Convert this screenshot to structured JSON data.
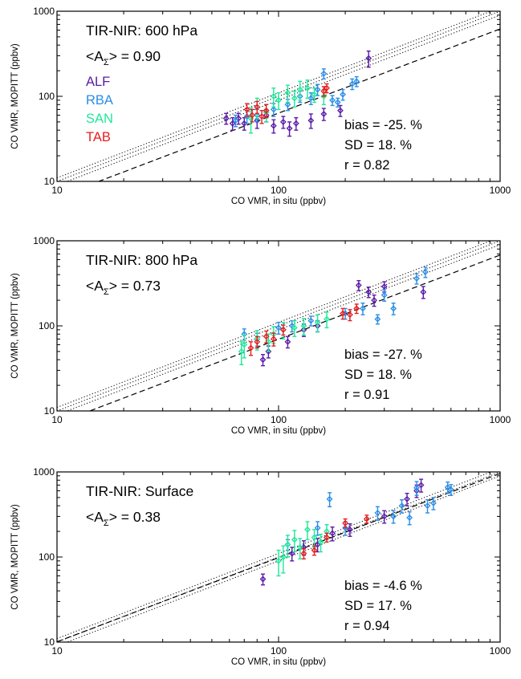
{
  "chart_data": [
    {
      "type": "scatter",
      "title": "TIR-NIR: 600 hPa",
      "avg_ak_label": "<A",
      "avg_ak_sub": "Σ",
      "avg_ak_value": "> = 0.90",
      "xlabel": "CO VMR, in situ (ppbv)",
      "ylabel": "CO VMR, MOPITT (ppbv)",
      "xscale": "log",
      "yscale": "log",
      "xlim": [
        10,
        1000
      ],
      "ylim": [
        10,
        1000
      ],
      "xticks": [
        {
          "v": 10,
          "label": "10"
        },
        {
          "v": 100,
          "label": "100"
        },
        {
          "v": 1000,
          "label": "1000"
        }
      ],
      "yticks": [
        {
          "v": 10,
          "label": "10"
        },
        {
          "v": 100,
          "label": "100"
        },
        {
          "v": 1000,
          "label": "1000"
        }
      ],
      "legend": [
        "ALF",
        "RBA",
        "SAN",
        "TAB"
      ],
      "stats": [
        "bias = -25. %",
        "SD = 18. %",
        "r = 0.82"
      ],
      "fit_factor": 0.62,
      "series": [
        {
          "name": "ALF",
          "color": "#5a1aa8",
          "points": [
            [
              58,
              55,
              8
            ],
            [
              62,
              48,
              8
            ],
            [
              66,
              55,
              8
            ],
            [
              70,
              48,
              8
            ],
            [
              80,
              52,
              10
            ],
            [
              88,
              60,
              10
            ],
            [
              95,
              45,
              8
            ],
            [
              105,
              50,
              8
            ],
            [
              112,
              42,
              8
            ],
            [
              120,
              48,
              8
            ],
            [
              140,
              52,
              10
            ],
            [
              160,
              62,
              10
            ],
            [
              190,
              68,
              10
            ],
            [
              255,
              280,
              60
            ]
          ]
        },
        {
          "name": "RBA",
          "color": "#2a8ee6",
          "points": [
            [
              64,
              52,
              8
            ],
            [
              72,
              58,
              10
            ],
            [
              80,
              60,
              10
            ],
            [
              95,
              70,
              12
            ],
            [
              110,
              80,
              12
            ],
            [
              125,
              100,
              15
            ],
            [
              140,
              95,
              15
            ],
            [
              150,
              120,
              18
            ],
            [
              160,
              185,
              25
            ],
            [
              175,
              90,
              12
            ],
            [
              185,
              85,
              10
            ],
            [
              195,
              105,
              15
            ],
            [
              215,
              140,
              20
            ],
            [
              225,
              150,
              20
            ]
          ]
        },
        {
          "name": "SAN",
          "color": "#1fe89a",
          "points": [
            [
              75,
              55,
              18
            ],
            [
              80,
              75,
              20
            ],
            [
              88,
              65,
              15
            ],
            [
              95,
              100,
              25
            ],
            [
              100,
              90,
              20
            ],
            [
              110,
              110,
              25
            ],
            [
              118,
              95,
              20
            ],
            [
              125,
              120,
              30
            ],
            [
              135,
              125,
              30
            ],
            [
              145,
              105,
              20
            ],
            [
              160,
              100,
              20
            ]
          ]
        },
        {
          "name": "TAB",
          "color": "#e61e1e",
          "points": [
            [
              72,
              70,
              12
            ],
            [
              76,
              60,
              10
            ],
            [
              80,
              75,
              12
            ],
            [
              84,
              58,
              10
            ],
            [
              88,
              68,
              12
            ],
            [
              160,
              115,
              15
            ],
            [
              165,
              125,
              15
            ]
          ]
        }
      ]
    },
    {
      "type": "scatter",
      "title": "TIR-NIR: 800 hPa",
      "avg_ak_label": "<A",
      "avg_ak_sub": "Σ",
      "avg_ak_value": "> = 0.73",
      "xlabel": "CO VMR, in situ (ppbv)",
      "ylabel": "CO VMR, MOPITT (ppbv)",
      "xscale": "log",
      "yscale": "log",
      "xlim": [
        10,
        1000
      ],
      "ylim": [
        10,
        1000
      ],
      "xticks": [
        {
          "v": 10,
          "label": "10"
        },
        {
          "v": 100,
          "label": "100"
        },
        {
          "v": 1000,
          "label": "1000"
        }
      ],
      "yticks": [
        {
          "v": 10,
          "label": "10"
        },
        {
          "v": 100,
          "label": "100"
        },
        {
          "v": 1000,
          "label": "1000"
        }
      ],
      "stats": [
        "bias = -27. %",
        "SD = 18. %",
        "r = 0.91"
      ],
      "fit_factor": 0.68,
      "series": [
        {
          "name": "ALF",
          "color": "#5a1aa8",
          "points": [
            [
              85,
              40,
              6
            ],
            [
              90,
              50,
              8
            ],
            [
              110,
              65,
              10
            ],
            [
              130,
              90,
              15
            ],
            [
              150,
              100,
              15
            ],
            [
              230,
              300,
              40
            ],
            [
              255,
              250,
              35
            ],
            [
              270,
              200,
              30
            ],
            [
              300,
              290,
              40
            ],
            [
              450,
              250,
              40
            ]
          ]
        },
        {
          "name": "RBA",
          "color": "#2a8ee6",
          "points": [
            [
              70,
              80,
              12
            ],
            [
              80,
              70,
              12
            ],
            [
              100,
              95,
              15
            ],
            [
              115,
              100,
              15
            ],
            [
              140,
              115,
              15
            ],
            [
              200,
              140,
              20
            ],
            [
              240,
              160,
              25
            ],
            [
              280,
              120,
              15
            ],
            [
              300,
              230,
              35
            ],
            [
              330,
              160,
              25
            ],
            [
              420,
              360,
              50
            ],
            [
              460,
              430,
              60
            ]
          ]
        },
        {
          "name": "SAN",
          "color": "#1fe89a",
          "points": [
            [
              68,
              50,
              15
            ],
            [
              70,
              60,
              18
            ],
            [
              80,
              70,
              18
            ],
            [
              90,
              65,
              15
            ],
            [
              95,
              80,
              18
            ],
            [
              105,
              90,
              20
            ],
            [
              118,
              95,
              20
            ],
            [
              130,
              100,
              22
            ],
            [
              150,
              110,
              25
            ],
            [
              165,
              120,
              25
            ]
          ]
        },
        {
          "name": "TAB",
          "color": "#e61e1e",
          "points": [
            [
              75,
              55,
              10
            ],
            [
              80,
              65,
              10
            ],
            [
              88,
              75,
              12
            ],
            [
              95,
              70,
              12
            ],
            [
              105,
              90,
              12
            ],
            [
              195,
              140,
              20
            ],
            [
              210,
              135,
              20
            ],
            [
              225,
              160,
              20
            ]
          ]
        }
      ]
    },
    {
      "type": "scatter",
      "title": "TIR-NIR: Surface",
      "avg_ak_label": "<A",
      "avg_ak_sub": "Σ",
      "avg_ak_value": "> = 0.38",
      "xlabel": "CO VMR, in situ (ppbv)",
      "ylabel": "CO VMR, MOPITT (ppbv)",
      "xscale": "log",
      "yscale": "log",
      "xlim": [
        10,
        1000
      ],
      "ylim": [
        10,
        1000
      ],
      "xticks": [
        {
          "v": 10,
          "label": "10"
        },
        {
          "v": 100,
          "label": "100"
        },
        {
          "v": 1000,
          "label": "1000"
        }
      ],
      "yticks": [
        {
          "v": 10,
          "label": "10"
        },
        {
          "v": 100,
          "label": "100"
        },
        {
          "v": 1000,
          "label": "1000"
        }
      ],
      "stats": [
        "bias = -4.6 %",
        "SD = 17. %",
        "r = 0.94"
      ],
      "fit_factor": 0.96,
      "series": [
        {
          "name": "ALF",
          "color": "#5a1aa8",
          "points": [
            [
              85,
              55,
              8
            ],
            [
              115,
              110,
              20
            ],
            [
              130,
              130,
              25
            ],
            [
              150,
              140,
              25
            ],
            [
              175,
              190,
              35
            ],
            [
              210,
              210,
              35
            ],
            [
              300,
              300,
              50
            ],
            [
              380,
              480,
              80
            ],
            [
              420,
              600,
              100
            ],
            [
              440,
              700,
              120
            ]
          ]
        },
        {
          "name": "RBA",
          "color": "#2a8ee6",
          "points": [
            [
              110,
              140,
              20
            ],
            [
              150,
              220,
              40
            ],
            [
              170,
              480,
              90
            ],
            [
              200,
              220,
              40
            ],
            [
              280,
              330,
              60
            ],
            [
              330,
              300,
              50
            ],
            [
              360,
              400,
              70
            ],
            [
              390,
              290,
              50
            ],
            [
              420,
              650,
              120
            ],
            [
              470,
              400,
              70
            ],
            [
              500,
              430,
              70
            ],
            [
              580,
              660,
              100
            ],
            [
              600,
              620,
              90
            ]
          ]
        },
        {
          "name": "SAN",
          "color": "#1fe89a",
          "points": [
            [
              100,
              90,
              30
            ],
            [
              105,
              100,
              35
            ],
            [
              110,
              140,
              40
            ],
            [
              118,
              160,
              45
            ],
            [
              125,
              130,
              35
            ],
            [
              135,
              210,
              50
            ],
            [
              145,
              170,
              40
            ],
            [
              155,
              150,
              35
            ],
            [
              165,
              200,
              40
            ]
          ]
        },
        {
          "name": "TAB",
          "color": "#e61e1e",
          "points": [
            [
              130,
              110,
              15
            ],
            [
              145,
              120,
              15
            ],
            [
              165,
              170,
              20
            ],
            [
              200,
              250,
              30
            ],
            [
              250,
              280,
              30
            ]
          ]
        }
      ]
    }
  ]
}
